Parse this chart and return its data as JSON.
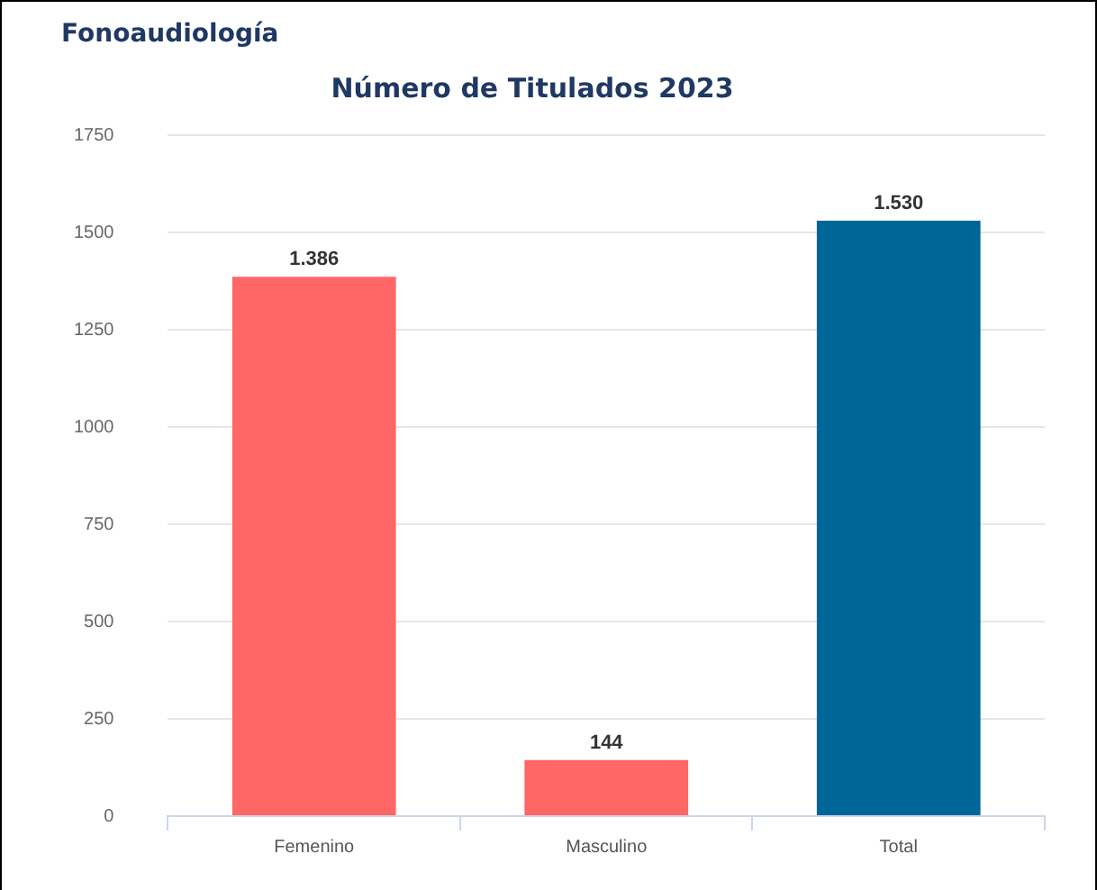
{
  "chart_data": {
    "type": "bar",
    "title": "Fonoaudiología",
    "subtitle": "Número de Titulados 2023",
    "categories": [
      "Femenino",
      "Masculino",
      "Total"
    ],
    "values": [
      1386,
      144,
      1530
    ],
    "colors": [
      "#ff6666",
      "#ff6666",
      "#006699"
    ],
    "value_labels": [
      "1.386",
      "144",
      "1.530"
    ],
    "ylim": [
      0,
      1750
    ],
    "yticks": [
      0,
      250,
      500,
      750,
      1000,
      1250,
      1500,
      1750
    ],
    "grid": "y"
  }
}
